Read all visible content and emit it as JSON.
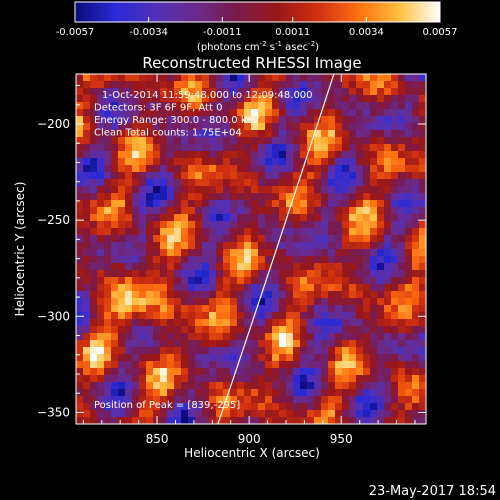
{
  "chart_data": {
    "type": "heatmap",
    "title": "Reconstructed RHESSI Image",
    "xlabel": "Heliocentric X (arcsec)",
    "ylabel": "Heliocentric Y (arcsec)",
    "xlim": [
      806,
      996
    ],
    "ylim": [
      -356,
      -174
    ],
    "xticks": [
      850,
      900,
      950
    ],
    "yticks": [
      -350,
      -300,
      -250,
      -200
    ],
    "colorbar": {
      "ticks": [
        "-0.0057",
        "-0.0034",
        "-0.0011",
        "0.0011",
        "0.0034",
        "0.0057"
      ],
      "range": [
        -0.0057,
        0.0057
      ],
      "unit_base": "(photons cm",
      "unit_exp1": "-2",
      "unit_mid": " s",
      "unit_exp2": "-1",
      "unit_end": " asec",
      "unit_exp3": "-2",
      "unit_close": ")",
      "colormap": [
        "#0a0a78",
        "#2a2ad8",
        "#5030b8",
        "#6a2a8a",
        "#7a1a4a",
        "#9a1818",
        "#d03010",
        "#ff7010",
        "#ffc040",
        "#ffffff"
      ]
    },
    "annotations": [
      "1-Oct-2014 11:59:48.000 to 12:09:48.000",
      "Detectors: 3F 6F 9F, Att 0",
      "Energy Range: 300.0 - 800.0 keV",
      "Clean      Total counts: 1.75E+04"
    ],
    "peak_label": "Position of Peak = [839,-295]",
    "peak_position": [
      839,
      -295
    ],
    "limb_curve": [
      [
        883,
        -356
      ],
      [
        910,
        -279
      ],
      [
        946,
        -174
      ]
    ],
    "timestamp": "23-May-2017 18:54"
  }
}
